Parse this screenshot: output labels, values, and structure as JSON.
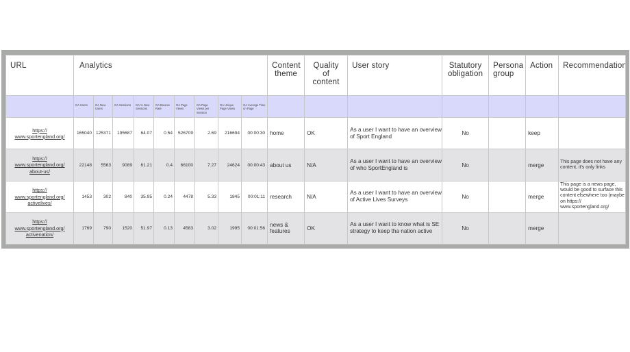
{
  "headers": {
    "url": "URL",
    "analytics": "Analytics",
    "content_theme": "Content theme",
    "quality": "Quality of content",
    "user_story": "User story",
    "statutory": "Statutory obligation",
    "persona": "Persona group",
    "action": "Action",
    "recommendation": "Recommendation"
  },
  "metrics": [
    "GA Users",
    "GA New Users",
    "GA Sessions",
    "GA % New Sessions",
    "GA Bounce Rate",
    "GA Page Views",
    "GA Page Views per Session",
    "GA Unique Page Views",
    "GA Average Time on Page"
  ],
  "rows": [
    {
      "url_lines": [
        "https://",
        "www.sportengland.org/"
      ],
      "values": [
        "165040",
        "125371",
        "195687",
        "64.07",
        "0.54",
        "526709",
        "2.69",
        "216694",
        "00:00:30"
      ],
      "theme": "home",
      "quality": "OK",
      "story": "As a user I want to have an overview of Sport England",
      "statutory": "No",
      "persona": "",
      "action": "keep",
      "recommendation": ""
    },
    {
      "url_lines": [
        "https://",
        "www.sportengland.org/",
        "about-us/"
      ],
      "values": [
        "22148",
        "5563",
        "9089",
        "61.21",
        "0.4",
        "66100",
        "7.27",
        "24624",
        "00:00:43"
      ],
      "theme": "about us",
      "quality": "N/A",
      "story": "As a user I want to have an overview of who SportEngland is",
      "statutory": "No",
      "persona": "",
      "action": "merge",
      "recommendation": "This page does not have any content, it's only links"
    },
    {
      "url_lines": [
        "https://",
        "www.sportengland.org/",
        "activelives/"
      ],
      "values": [
        "1453",
        "302",
        "840",
        "35.95",
        "0.24",
        "4478",
        "5.33",
        "1845",
        "00:01:11"
      ],
      "theme": "research",
      "quality": "N/A",
      "story": "As a user I want to have an overview of Active Lives Surveys",
      "statutory": "No",
      "persona": "",
      "action": "merge",
      "recommendation": "This page is a news page, would be good to surface this content elsewhere too (maybe on https:// www.sportengland.org/"
    },
    {
      "url_lines": [
        "https://",
        "www.sportengland.org/",
        "activenation/"
      ],
      "values": [
        "1769",
        "790",
        "1520",
        "51.97",
        "0.13",
        "4583",
        "3.02",
        "1995",
        "00:01:56"
      ],
      "theme": "news & features",
      "quality": "OK",
      "story": "As a user I want to know what is SE strategy to keep tha nation active",
      "statutory": "No",
      "persona": "",
      "action": "merge",
      "recommendation": ""
    }
  ]
}
